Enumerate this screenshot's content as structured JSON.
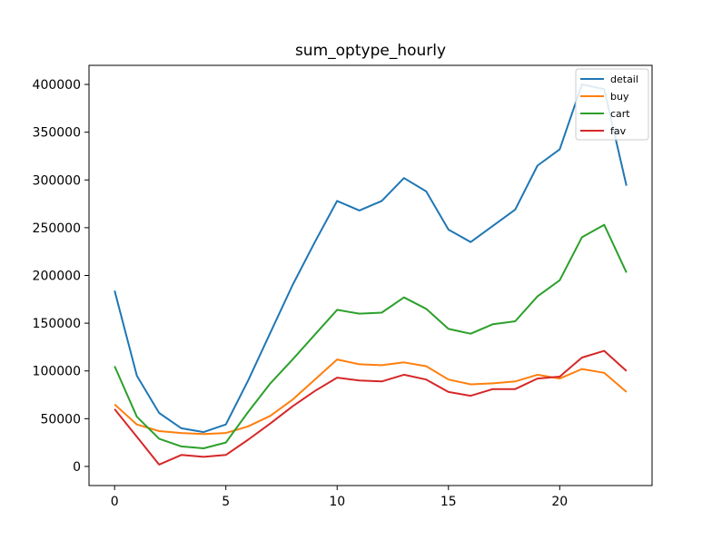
{
  "chart_data": {
    "type": "line",
    "title": "sum_optype_hourly",
    "xlabel": "",
    "ylabel": "",
    "xlim": [
      -1.15,
      24.15
    ],
    "ylim": [
      -20000,
      420000
    ],
    "x": [
      0,
      1,
      2,
      3,
      4,
      5,
      6,
      7,
      8,
      9,
      10,
      11,
      12,
      13,
      14,
      15,
      16,
      17,
      18,
      19,
      20,
      21,
      22,
      23
    ],
    "x_ticks": [
      0,
      5,
      10,
      15,
      20
    ],
    "y_ticks": [
      0,
      50000,
      100000,
      150000,
      200000,
      250000,
      300000,
      350000,
      400000
    ],
    "grid": false,
    "legend_position": "top-right",
    "series": [
      {
        "name": "detail",
        "color": "#1f77b4",
        "values": [
          184000,
          95000,
          56000,
          40000,
          36000,
          44000,
          90000,
          140000,
          190000,
          235000,
          278000,
          268000,
          278000,
          302000,
          288000,
          248000,
          235000,
          252000,
          269000,
          315000,
          332000,
          400000,
          395000,
          294000
        ]
      },
      {
        "name": "buy",
        "color": "#ff7f0e",
        "values": [
          65000,
          44000,
          37000,
          35000,
          34000,
          35000,
          42000,
          53000,
          70000,
          91000,
          112000,
          107000,
          106000,
          109000,
          105000,
          91000,
          86000,
          87000,
          89000,
          96000,
          92000,
          102000,
          98000,
          78000
        ]
      },
      {
        "name": "cart",
        "color": "#2ca02c",
        "values": [
          105000,
          52000,
          29000,
          21000,
          19000,
          25000,
          57000,
          87000,
          112000,
          138000,
          164000,
          160000,
          161000,
          177000,
          165000,
          144000,
          139000,
          149000,
          152000,
          178000,
          195000,
          240000,
          253000,
          203000
        ]
      },
      {
        "name": "fav",
        "color": "#d62728",
        "values": [
          60000,
          31000,
          2000,
          12000,
          10000,
          12000,
          28000,
          45000,
          63000,
          79000,
          93000,
          90000,
          89000,
          96000,
          91000,
          78000,
          74000,
          81000,
          81000,
          92000,
          94000,
          114000,
          121000,
          100000
        ]
      }
    ]
  }
}
